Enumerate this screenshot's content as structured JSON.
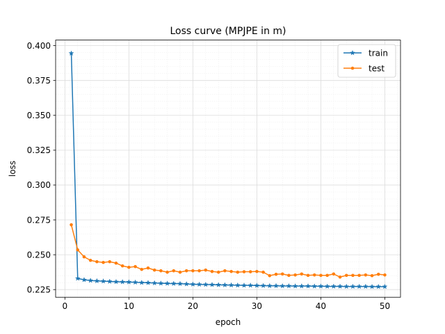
{
  "chart_data": {
    "type": "line",
    "title": "Loss curve (MPJPE in m)",
    "xlabel": "epoch",
    "ylabel": "loss",
    "xlim": [
      -1.45,
      52.45
    ],
    "ylim": [
      0.2195,
      0.404
    ],
    "x_ticks": [
      0,
      10,
      20,
      30,
      40,
      50
    ],
    "x_tick_labels": [
      "0",
      "10",
      "20",
      "30",
      "40",
      "50"
    ],
    "y_ticks": [
      0.225,
      0.25,
      0.275,
      0.3,
      0.325,
      0.35,
      0.375,
      0.4
    ],
    "y_tick_labels": [
      "0.225",
      "0.250",
      "0.275",
      "0.300",
      "0.325",
      "0.350",
      "0.375",
      "0.400"
    ],
    "grid": true,
    "minor_grid": true,
    "legend_position": "top-right",
    "x": [
      1,
      2,
      3,
      4,
      5,
      6,
      7,
      8,
      9,
      10,
      11,
      12,
      13,
      14,
      15,
      16,
      17,
      18,
      19,
      20,
      21,
      22,
      23,
      24,
      25,
      26,
      27,
      28,
      29,
      30,
      31,
      32,
      33,
      34,
      35,
      36,
      37,
      38,
      39,
      40,
      41,
      42,
      43,
      44,
      45,
      46,
      47,
      48,
      49,
      50
    ],
    "series": [
      {
        "name": "train",
        "color": "#1f77b4",
        "marker": "star",
        "values": [
          0.3945,
          0.233,
          0.232,
          0.2315,
          0.2312,
          0.231,
          0.2308,
          0.2306,
          0.2305,
          0.2304,
          0.2302,
          0.23,
          0.2299,
          0.2297,
          0.2295,
          0.2294,
          0.2293,
          0.2292,
          0.229,
          0.2288,
          0.2287,
          0.2286,
          0.2285,
          0.2284,
          0.2283,
          0.2282,
          0.2281,
          0.228,
          0.228,
          0.2279,
          0.2278,
          0.2277,
          0.2277,
          0.2276,
          0.2276,
          0.2275,
          0.2275,
          0.2275,
          0.2274,
          0.2274,
          0.2273,
          0.2273,
          0.2273,
          0.2272,
          0.2272,
          0.2272,
          0.2272,
          0.2271,
          0.2271,
          0.2271
        ]
      },
      {
        "name": "test",
        "color": "#ff7f0e",
        "marker": "dot",
        "values": [
          0.2715,
          0.2535,
          0.2485,
          0.246,
          0.245,
          0.2445,
          0.245,
          0.244,
          0.242,
          0.241,
          0.2415,
          0.2395,
          0.2405,
          0.239,
          0.2385,
          0.2375,
          0.2385,
          0.2375,
          0.2385,
          0.2385,
          0.2385,
          0.239,
          0.238,
          0.2375,
          0.2385,
          0.238,
          0.2375,
          0.2378,
          0.2378,
          0.238,
          0.2375,
          0.235,
          0.236,
          0.2362,
          0.2352,
          0.2355,
          0.2362,
          0.2352,
          0.2355,
          0.2352,
          0.2352,
          0.2362,
          0.234,
          0.2352,
          0.2352,
          0.2352,
          0.2355,
          0.235,
          0.236,
          0.2355
        ]
      }
    ]
  }
}
